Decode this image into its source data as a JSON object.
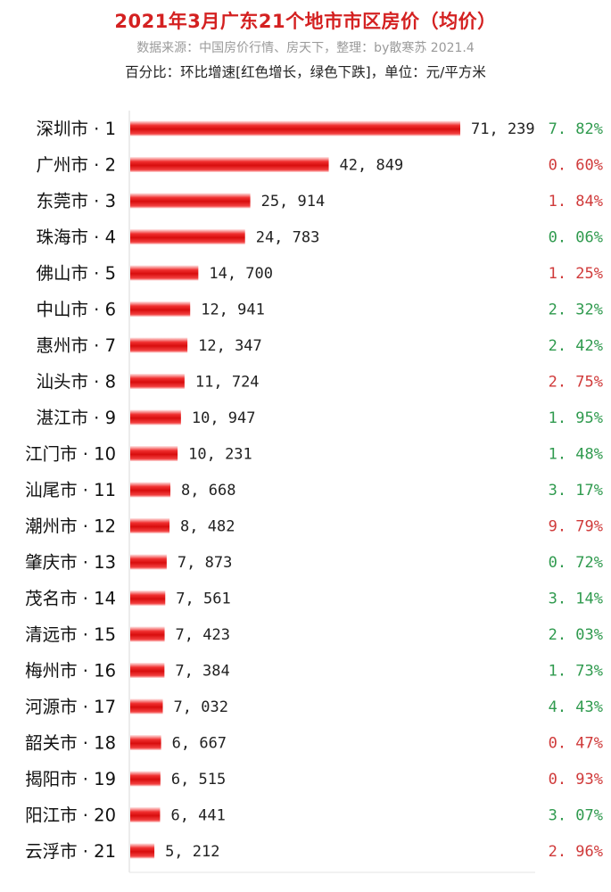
{
  "title": "2021年3月广东21个地市市区房价（均价）",
  "subtitle": "数据来源：中国房价行情、房天下，整理：by散寒苏 2021.4",
  "note": "百分比：环比增速[红色增长，绿色下跌]，单位：元/平方米",
  "colors": {
    "increase": "#d03a3a",
    "decrease": "#2f9a4e",
    "bar": "#e31b1b",
    "title": "#d42121"
  },
  "chart_data": {
    "type": "bar",
    "orientation": "horizontal",
    "categories": [
      "深圳市 · 1",
      "广州市 · 2",
      "东莞市 · 3",
      "珠海市 · 4",
      "佛山市 · 5",
      "中山市 · 6",
      "惠州市 · 7",
      "汕头市 · 8",
      "湛江市 · 9",
      "江门市 · 10",
      "汕尾市 · 11",
      "潮州市 · 12",
      "肇庆市 · 13",
      "茂名市 · 14",
      "清远市 · 15",
      "梅州市 · 16",
      "河源市 · 17",
      "韶关市 · 18",
      "揭阳市 · 19",
      "阳江市 · 20",
      "云浮市 · 21"
    ],
    "values": [
      71239,
      42849,
      25914,
      24783,
      14700,
      12941,
      12347,
      11724,
      10947,
      10231,
      8668,
      8482,
      7873,
      7561,
      7423,
      7384,
      7032,
      6667,
      6515,
      6441,
      5212
    ],
    "value_labels": [
      "71, 239",
      "42, 849",
      "25, 914",
      "24, 783",
      "14, 700",
      "12, 941",
      "12, 347",
      "11, 724",
      "10, 947",
      "10, 231",
      "8, 668",
      "8, 482",
      "7, 873",
      "7, 561",
      "7, 423",
      "7, 384",
      "7, 032",
      "6, 667",
      "6, 515",
      "6, 441",
      "5, 212"
    ],
    "change_labels": [
      "7. 82%",
      "0. 60%",
      "1. 84%",
      "0. 06%",
      "1. 25%",
      "2. 32%",
      "2. 42%",
      "2. 75%",
      "1. 95%",
      "1. 48%",
      "3. 17%",
      "9. 79%",
      "0. 72%",
      "3. 14%",
      "2. 03%",
      "1. 73%",
      "4. 43%",
      "0. 47%",
      "0. 93%",
      "3. 07%",
      "2. 96%"
    ],
    "change_direction": [
      "down",
      "up",
      "up",
      "down",
      "up",
      "down",
      "down",
      "up",
      "down",
      "down",
      "down",
      "up",
      "down",
      "down",
      "down",
      "down",
      "down",
      "up",
      "up",
      "down",
      "up"
    ],
    "xlim": [
      0,
      71239
    ],
    "grid": false,
    "legend": "none"
  }
}
